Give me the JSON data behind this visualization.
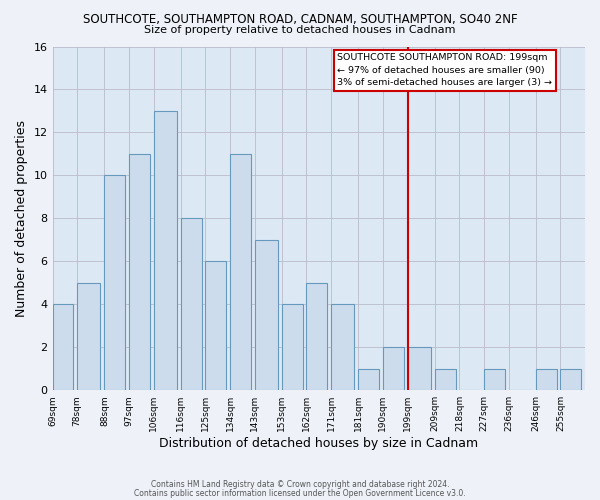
{
  "title": "SOUTHCOTE, SOUTHAMPTON ROAD, CADNAM, SOUTHAMPTON, SO40 2NF",
  "subtitle": "Size of property relative to detached houses in Cadnam",
  "xlabel": "Distribution of detached houses by size in Cadnam",
  "ylabel": "Number of detached properties",
  "bar_color": "#ccdcec",
  "bar_edgecolor": "#6699bb",
  "bg_color": "#eef2f8",
  "plot_bg_color": "#dce8f4",
  "grid_color": "#bbbbcc",
  "bins": [
    69,
    78,
    88,
    97,
    106,
    116,
    125,
    134,
    143,
    153,
    162,
    171,
    181,
    190,
    199,
    209,
    218,
    227,
    236,
    246,
    255
  ],
  "counts": [
    4,
    5,
    10,
    11,
    13,
    8,
    6,
    11,
    7,
    4,
    5,
    4,
    1,
    2,
    2,
    1,
    0,
    1,
    0,
    1,
    1
  ],
  "tick_labels": [
    "69sqm",
    "78sqm",
    "88sqm",
    "97sqm",
    "106sqm",
    "116sqm",
    "125sqm",
    "134sqm",
    "143sqm",
    "153sqm",
    "162sqm",
    "171sqm",
    "181sqm",
    "190sqm",
    "199sqm",
    "209sqm",
    "218sqm",
    "227sqm",
    "236sqm",
    "246sqm",
    "255sqm"
  ],
  "vline_x": 199,
  "vline_color": "#cc0000",
  "ylim": [
    0,
    16
  ],
  "yticks": [
    0,
    2,
    4,
    6,
    8,
    10,
    12,
    14,
    16
  ],
  "annotation_title": "SOUTHCOTE SOUTHAMPTON ROAD: 199sqm",
  "annotation_line1": "← 97% of detached houses are smaller (90)",
  "annotation_line2": "3% of semi-detached houses are larger (3) →",
  "annotation_box_color": "#ffffff",
  "annotation_border_color": "#cc0000",
  "footer1": "Contains HM Land Registry data © Crown copyright and database right 2024.",
  "footer2": "Contains public sector information licensed under the Open Government Licence v3.0."
}
